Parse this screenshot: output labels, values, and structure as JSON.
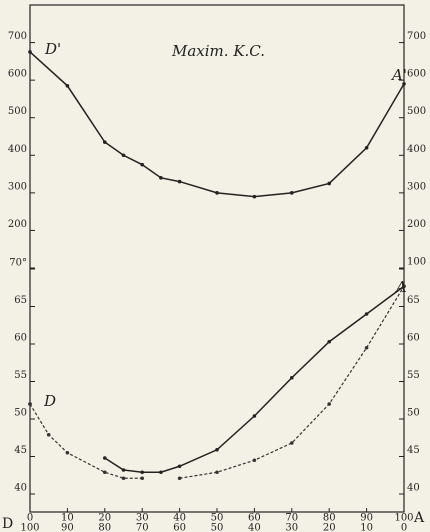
{
  "chart_data": [
    {
      "type": "line",
      "annotations": [
        "Maxim. K.C.",
        "D'",
        "A'"
      ],
      "x": [
        0,
        10,
        20,
        25,
        30,
        35,
        40,
        50,
        60,
        70,
        80,
        90,
        100
      ],
      "series": [
        {
          "color": "#222",
          "dash": false,
          "values": [
            675,
            585,
            435,
            400,
            375,
            340,
            330,
            300,
            290,
            300,
            325,
            420,
            590
          ]
        }
      ],
      "xlim": [
        0,
        100
      ],
      "ylim": [
        100,
        800
      ],
      "yticks": [
        100,
        200,
        300,
        400,
        500,
        600,
        700
      ]
    },
    {
      "type": "line",
      "annotations": [
        "D",
        "A"
      ],
      "axis_labels": [
        "D",
        "A"
      ],
      "x": [
        0,
        5,
        10,
        20,
        25,
        30,
        35,
        40,
        50,
        60,
        70,
        80,
        90,
        100
      ],
      "series": [
        {
          "color": "#222",
          "dash": false,
          "values": [
            52,
            null,
            null,
            44.8,
            43.2,
            42.9,
            42.9,
            43.7,
            45.9,
            50.4,
            55.5,
            60.3,
            64,
            67.7
          ]
        },
        {
          "color": "#333",
          "dash": true,
          "values": [
            52,
            47.9,
            45.5,
            42.9,
            42.1,
            42.1,
            null,
            42.1,
            42.9,
            44.5,
            46.8,
            52,
            59.5,
            67.7
          ]
        }
      ],
      "xlim": [
        0,
        100
      ],
      "ylim": [
        37.6,
        70
      ],
      "yticks": [
        40,
        45,
        50,
        55,
        60,
        65,
        {
          "value": 70,
          "label": "70°"
        }
      ],
      "xticks": [
        0,
        10,
        20,
        30,
        40,
        50,
        60,
        70,
        80,
        90,
        100
      ],
      "x2ticklabels": [
        "100",
        "90",
        "80",
        "70",
        "60",
        "50",
        "40",
        "30",
        "20",
        "10",
        "0"
      ]
    }
  ]
}
